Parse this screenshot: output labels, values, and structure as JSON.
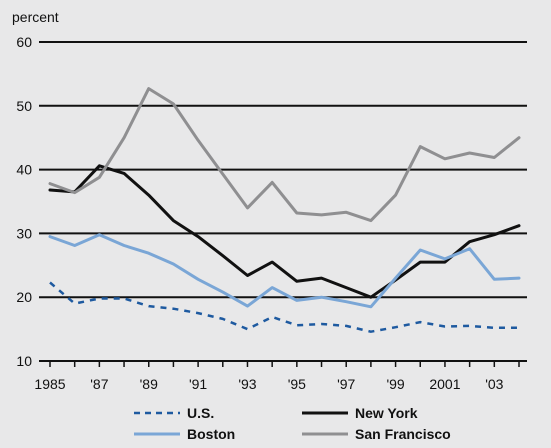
{
  "chart_data": {
    "type": "line",
    "ylabel": "percent",
    "xlabel": "",
    "ylim": [
      10,
      60
    ],
    "y_ticks": [
      "10",
      "20",
      "30",
      "40",
      "50",
      "60"
    ],
    "x_ticks": [
      {
        "value": 1985,
        "label": "1985"
      },
      {
        "value": 1987,
        "label": "'87"
      },
      {
        "value": 1989,
        "label": "'89"
      },
      {
        "value": 1991,
        "label": "'91"
      },
      {
        "value": 1993,
        "label": "'93"
      },
      {
        "value": 1995,
        "label": "'95"
      },
      {
        "value": 1997,
        "label": "'97"
      },
      {
        "value": 1999,
        "label": "'99"
      },
      {
        "value": 2001,
        "label": "2001"
      },
      {
        "value": 2003,
        "label": "'03"
      }
    ],
    "xlim": [
      1985,
      2004
    ],
    "grid": true,
    "legend_position": "bottom",
    "x": [
      1985,
      1986,
      1987,
      1988,
      1989,
      1990,
      1991,
      1992,
      1993,
      1994,
      1995,
      1996,
      1997,
      1998,
      1999,
      2000,
      2001,
      2002,
      2003,
      2004
    ],
    "series": [
      {
        "name": "U.S.",
        "color": "#1e5aa0",
        "dash": true,
        "width": 2.5,
        "values": [
          22.3,
          19.0,
          19.8,
          19.8,
          18.6,
          18.2,
          17.5,
          16.6,
          15.0,
          16.9,
          15.6,
          15.8,
          15.5,
          14.6,
          15.3,
          16.1,
          15.4,
          15.5,
          15.2,
          15.2
        ]
      },
      {
        "name": "New York",
        "color": "#111111",
        "dash": false,
        "width": 3,
        "values": [
          36.8,
          36.5,
          40.6,
          39.4,
          36.0,
          32.0,
          29.5,
          26.5,
          23.4,
          25.5,
          22.5,
          23.0,
          21.5,
          20.0,
          22.7,
          25.5,
          25.5,
          28.7,
          29.8,
          31.2
        ]
      },
      {
        "name": "Boston",
        "color": "#7aa6d6",
        "dash": false,
        "width": 3,
        "values": [
          29.5,
          28.1,
          29.8,
          28.1,
          26.9,
          25.2,
          22.8,
          20.8,
          18.6,
          21.5,
          19.5,
          20.0,
          19.3,
          18.5,
          23.0,
          27.4,
          26.0,
          27.6,
          22.8,
          23.0
        ]
      },
      {
        "name": "San Francisco",
        "color": "#8f8f91",
        "dash": false,
        "width": 3,
        "values": [
          37.8,
          36.4,
          38.8,
          45.0,
          52.7,
          50.3,
          44.6,
          39.3,
          34.0,
          38.0,
          33.2,
          32.9,
          33.3,
          32.0,
          36.0,
          43.6,
          41.7,
          42.6,
          41.9,
          45.0
        ]
      }
    ],
    "legend": [
      {
        "label": "U.S.",
        "series": 0
      },
      {
        "label": "New York",
        "series": 1
      },
      {
        "label": "Boston",
        "series": 2
      },
      {
        "label": "San Francisco",
        "series": 3
      }
    ]
  }
}
